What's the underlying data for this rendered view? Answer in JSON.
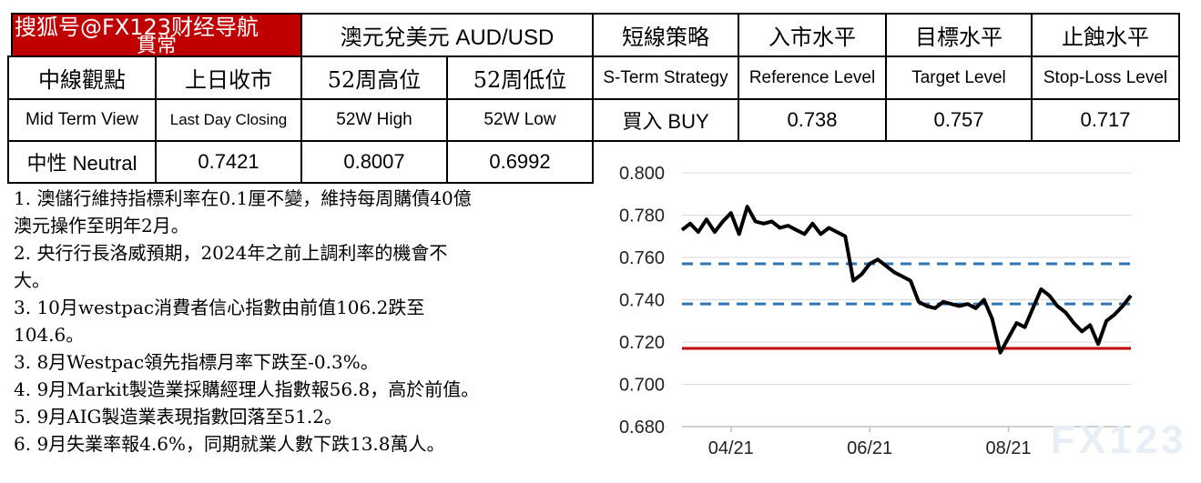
{
  "header": {
    "left_title": "貫常",
    "watermark": "搜狐号@FX123财经导航",
    "pair_title": "澳元兌美元 AUD/USD",
    "strategy_title": "短線策略",
    "entry_title": "入市水平",
    "target_title": "目標水平",
    "stop_title": "止蝕水平"
  },
  "labels_cn": {
    "mid_view": "中線觀點",
    "last_close": "上日收市",
    "high52": "52周高位",
    "low52": "52周低位"
  },
  "labels_en": {
    "strategy": "S-Term Strategy",
    "reference": "Reference Level",
    "target": "Target Level",
    "stoploss": "Stop-Loss Level",
    "mid_view": "Mid Term View",
    "last_close": "Last Day  Closing",
    "high52": "52W High",
    "low52": "52W Low"
  },
  "values": {
    "strategy": "買入 BUY",
    "reference": "0.738",
    "target": "0.757",
    "stoploss": "0.717",
    "view": "中性 Neutral",
    "last_close": "0.7421",
    "high52": "0.8007",
    "low52": "0.6992"
  },
  "notes": [
    "1. 澳儲行維持指標利率在0.1厘不變，維持每周購債40億",
    "澳元操作至明年2月。",
    "2. 央行行長洛威預期，2024年之前上調利率的機會不",
    "大。",
    "3. 10月westpac消費者信心指數由前值106.2跌至",
    "104.6。",
    "3. 8月Westpac領先指標月率下跌至-0.3%。",
    "4. 9月Markit製造業採購經理人指數報56.8，高於前值。",
    "5. 9月AIG製造業表現指數回落至51.2。",
    "6. 9月失業率報4.6%，同期就業人數下跌13.8萬人。"
  ],
  "chart_watermark": "FX123",
  "colors": {
    "header_red": "#c00000",
    "line": "#000000",
    "dashed": "#2e75b6",
    "stop": "#c00000",
    "grid": "#d9d9d9"
  },
  "chart_data": {
    "type": "line",
    "ylim": [
      0.68,
      0.8
    ],
    "yticks": [
      "0.800",
      "0.780",
      "0.760",
      "0.740",
      "0.720",
      "0.700",
      "0.680"
    ],
    "xticks": [
      "04/21",
      "06/21",
      "08/21"
    ],
    "reference_lines": [
      {
        "value": 0.757,
        "style": "dashed",
        "color": "#2e75b6"
      },
      {
        "value": 0.738,
        "style": "dashed",
        "color": "#2e75b6"
      },
      {
        "value": 0.717,
        "style": "solid",
        "color": "#c00000"
      }
    ],
    "x": [
      "04/01",
      "04/05",
      "04/08",
      "04/12",
      "04/15",
      "04/19",
      "04/22",
      "04/26",
      "04/29",
      "05/03",
      "05/06",
      "05/10",
      "05/13",
      "05/17",
      "05/20",
      "05/24",
      "05/27",
      "05/31",
      "06/03",
      "06/07",
      "06/10",
      "06/14",
      "06/17",
      "06/21",
      "06/24",
      "06/28",
      "07/01",
      "07/05",
      "07/08",
      "07/12",
      "07/15",
      "07/19",
      "07/22",
      "07/26",
      "07/29",
      "08/02",
      "08/05",
      "08/09",
      "08/12",
      "08/16",
      "08/19",
      "08/23",
      "08/26",
      "08/30",
      "09/02",
      "09/06",
      "09/09",
      "09/13",
      "09/16",
      "09/20",
      "09/23",
      "09/27",
      "09/30",
      "10/04",
      "10/07",
      "10/11"
    ],
    "values": [
      0.773,
      0.776,
      0.772,
      0.778,
      0.772,
      0.777,
      0.781,
      0.771,
      0.784,
      0.777,
      0.776,
      0.777,
      0.774,
      0.775,
      0.773,
      0.771,
      0.776,
      0.771,
      0.774,
      0.772,
      0.77,
      0.749,
      0.752,
      0.757,
      0.759,
      0.756,
      0.753,
      0.751,
      0.749,
      0.739,
      0.737,
      0.736,
      0.739,
      0.738,
      0.737,
      0.738,
      0.736,
      0.74,
      0.731,
      0.715,
      0.722,
      0.729,
      0.727,
      0.736,
      0.745,
      0.742,
      0.737,
      0.734,
      0.729,
      0.725,
      0.728,
      0.719,
      0.73,
      0.733,
      0.737,
      0.742
    ]
  }
}
